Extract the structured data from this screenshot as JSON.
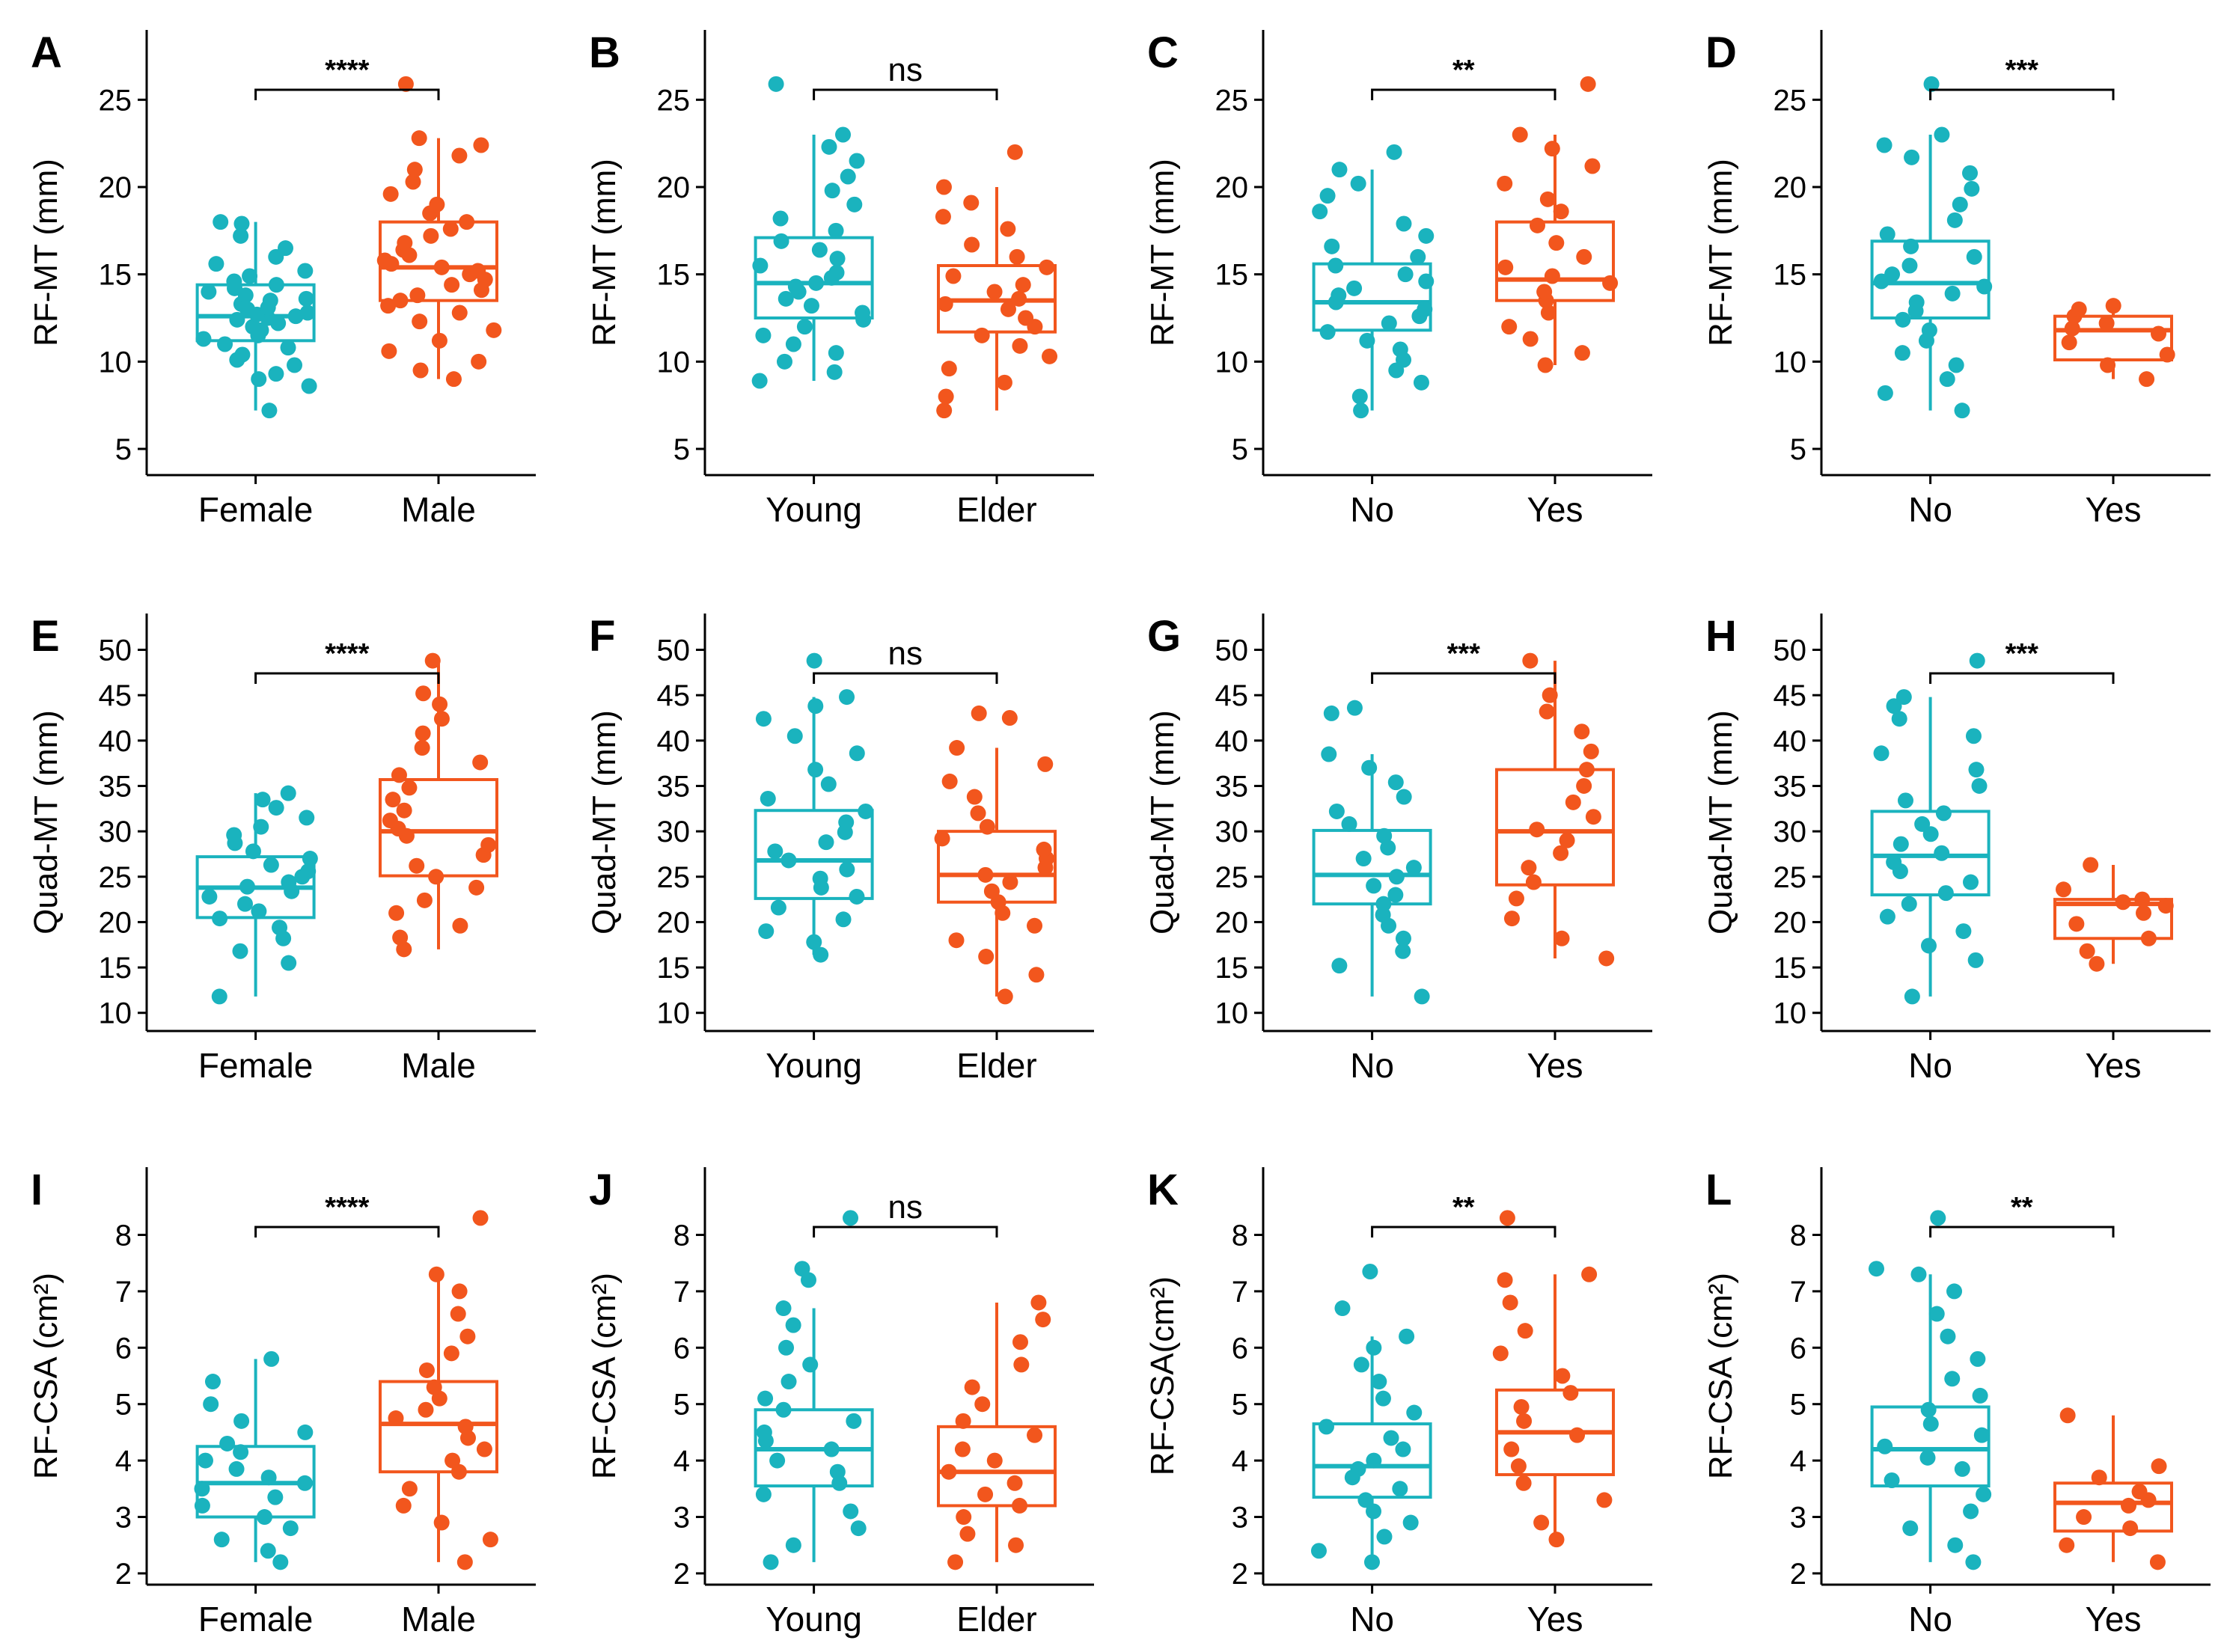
{
  "figure": {
    "title": "",
    "caption": ""
  },
  "colors": {
    "group1": "#1AB3BE",
    "group2": "#F2561D",
    "axis": "#000000"
  },
  "chart_data": [
    {
      "panel": "A",
      "type": "box",
      "ylabel": "RF-MT (mm)",
      "ylim": [
        3.5,
        29
      ],
      "yticks": [
        5,
        10,
        15,
        20,
        25
      ],
      "categories": [
        "Female",
        "Male"
      ],
      "significance": "****",
      "boxes": [
        {
          "q1": 11.2,
          "median": 12.6,
          "q3": 14.4,
          "whisker_low": 7.2,
          "whisker_high": 18.0
        },
        {
          "q1": 13.5,
          "median": 15.4,
          "q3": 18.0,
          "whisker_low": 9.0,
          "whisker_high": 22.8
        }
      ],
      "points": [
        [
          7.2,
          8.6,
          9,
          9.3,
          9.8,
          10.1,
          10.4,
          10.8,
          11.0,
          11.3,
          11.5,
          11.8,
          12.0,
          12.2,
          12.4,
          12.5,
          12.6,
          12.7,
          12.8,
          13.0,
          13.1,
          13.3,
          13.5,
          13.6,
          13.8,
          14.0,
          14.2,
          14.4,
          14.6,
          14.9,
          15.2,
          15.6,
          16.0,
          16.5,
          17.2,
          17.9,
          18.0
        ],
        [
          9.0,
          9.5,
          10.0,
          10.6,
          11.2,
          11.8,
          12.3,
          12.8,
          13.2,
          13.5,
          13.8,
          14.1,
          14.4,
          14.7,
          15.0,
          15.2,
          15.4,
          15.6,
          15.8,
          16.1,
          16.4,
          16.8,
          17.2,
          17.6,
          18.0,
          18.5,
          19.0,
          19.6,
          20.3,
          21.0,
          21.8,
          22.4,
          22.8,
          25.9
        ]
      ]
    },
    {
      "panel": "B",
      "type": "box",
      "ylabel": "RF-MT (mm)",
      "ylim": [
        3.5,
        29
      ],
      "yticks": [
        5,
        10,
        15,
        20,
        25
      ],
      "categories": [
        "Young",
        "Elder"
      ],
      "significance": "ns",
      "boxes": [
        {
          "q1": 12.5,
          "median": 14.5,
          "q3": 17.1,
          "whisker_low": 8.9,
          "whisker_high": 23.0
        },
        {
          "q1": 11.7,
          "median": 13.5,
          "q3": 15.5,
          "whisker_low": 7.2,
          "whisker_high": 20.0
        }
      ],
      "points": [
        [
          8.9,
          9.4,
          10.0,
          10.5,
          11.0,
          11.5,
          12.0,
          12.4,
          12.8,
          13.2,
          13.6,
          14.0,
          14.3,
          14.5,
          14.8,
          15.1,
          15.5,
          15.9,
          16.4,
          16.9,
          17.5,
          18.2,
          19.0,
          19.8,
          20.6,
          21.5,
          22.3,
          23.0,
          25.9
        ],
        [
          7.2,
          8.0,
          8.8,
          9.6,
          10.3,
          10.9,
          11.5,
          12.0,
          12.5,
          13.0,
          13.3,
          13.6,
          14.0,
          14.4,
          14.9,
          15.4,
          16.0,
          16.7,
          17.6,
          18.3,
          19.1,
          20.0,
          22.0
        ]
      ]
    },
    {
      "panel": "C",
      "type": "box",
      "ylabel": "RF-MT (mm)",
      "ylim": [
        3.5,
        29
      ],
      "yticks": [
        5,
        10,
        15,
        20,
        25
      ],
      "categories": [
        "No",
        "Yes"
      ],
      "significance": "**",
      "boxes": [
        {
          "q1": 11.8,
          "median": 13.4,
          "q3": 15.6,
          "whisker_low": 7.2,
          "whisker_high": 21.0
        },
        {
          "q1": 13.5,
          "median": 14.7,
          "q3": 18.0,
          "whisker_low": 9.8,
          "whisker_high": 23.0
        }
      ],
      "points": [
        [
          7.2,
          8.0,
          8.8,
          9.5,
          10.1,
          10.7,
          11.2,
          11.7,
          12.2,
          12.6,
          13.0,
          13.4,
          13.8,
          14.2,
          14.6,
          15.0,
          15.5,
          16.0,
          16.6,
          17.2,
          17.9,
          18.6,
          19.5,
          20.2,
          21.0,
          22.0
        ],
        [
          9.8,
          10.5,
          11.3,
          12.0,
          12.8,
          13.5,
          14.0,
          14.5,
          14.9,
          15.4,
          16.0,
          16.8,
          17.8,
          18.6,
          19.3,
          20.2,
          21.2,
          22.2,
          23.0,
          25.9
        ]
      ]
    },
    {
      "panel": "D",
      "type": "box",
      "ylabel": "RF-MT (mm)",
      "ylim": [
        3.5,
        29
      ],
      "yticks": [
        5,
        10,
        15,
        20,
        25
      ],
      "categories": [
        "No",
        "Yes"
      ],
      "significance": "***",
      "boxes": [
        {
          "q1": 12.5,
          "median": 14.5,
          "q3": 16.9,
          "whisker_low": 7.2,
          "whisker_high": 23.0
        },
        {
          "q1": 10.1,
          "median": 11.8,
          "q3": 12.6,
          "whisker_low": 9.0,
          "whisker_high": 13.2
        }
      ],
      "points": [
        [
          7.2,
          8.2,
          9.0,
          9.8,
          10.5,
          11.2,
          11.8,
          12.4,
          12.9,
          13.4,
          13.9,
          14.3,
          14.6,
          15.0,
          15.5,
          16.0,
          16.6,
          17.3,
          18.1,
          19.0,
          19.9,
          20.8,
          21.7,
          22.4,
          23.0,
          25.9
        ],
        [
          9.0,
          9.8,
          10.4,
          11.1,
          11.6,
          11.9,
          12.2,
          12.6,
          13.0,
          13.2
        ]
      ]
    },
    {
      "panel": "E",
      "type": "box",
      "ylabel": "Quad-MT (mm)",
      "ylim": [
        8,
        54
      ],
      "yticks": [
        10,
        15,
        20,
        25,
        30,
        35,
        40,
        45,
        50
      ],
      "categories": [
        "Female",
        "Male"
      ],
      "significance": "****",
      "boxes": [
        {
          "q1": 20.5,
          "median": 23.8,
          "q3": 27.2,
          "whisker_low": 11.8,
          "whisker_high": 34.2
        },
        {
          "q1": 25.1,
          "median": 30.0,
          "q3": 35.7,
          "whisker_low": 17.0,
          "whisker_high": 48.8
        }
      ],
      "points": [
        [
          11.8,
          15.5,
          16.8,
          18.2,
          19.4,
          20.4,
          21.2,
          22.0,
          22.8,
          23.4,
          23.9,
          24.4,
          25.0,
          25.6,
          26.3,
          27.0,
          27.8,
          28.7,
          29.6,
          30.5,
          31.5,
          32.6,
          33.5,
          34.2
        ],
        [
          17.0,
          18.3,
          19.6,
          21.0,
          22.4,
          23.8,
          25.0,
          26.2,
          27.4,
          28.5,
          29.5,
          30.3,
          31.2,
          32.3,
          33.5,
          34.8,
          36.2,
          37.6,
          39.2,
          40.8,
          42.4,
          44.0,
          45.2,
          48.8
        ]
      ]
    },
    {
      "panel": "F",
      "type": "box",
      "ylabel": "Quad-MT (mm)",
      "ylim": [
        8,
        54
      ],
      "yticks": [
        10,
        15,
        20,
        25,
        30,
        35,
        40,
        45,
        50
      ],
      "categories": [
        "Young",
        "Elder"
      ],
      "significance": "ns",
      "boxes": [
        {
          "q1": 22.6,
          "median": 26.8,
          "q3": 32.3,
          "whisker_low": 16.4,
          "whisker_high": 44.8
        },
        {
          "q1": 22.2,
          "median": 25.2,
          "q3": 30.0,
          "whisker_low": 11.8,
          "whisker_high": 39.2
        }
      ],
      "points": [
        [
          16.4,
          17.8,
          19.0,
          20.3,
          21.6,
          22.8,
          23.8,
          24.8,
          25.8,
          26.8,
          27.8,
          28.8,
          29.9,
          31.0,
          32.2,
          33.6,
          35.2,
          36.8,
          38.6,
          40.5,
          42.4,
          43.8,
          44.8,
          48.8
        ],
        [
          11.8,
          14.2,
          16.2,
          18.0,
          19.6,
          21.0,
          22.2,
          23.4,
          24.4,
          25.2,
          26.0,
          27.0,
          28.0,
          29.2,
          30.5,
          32.0,
          33.8,
          35.5,
          37.4,
          39.2,
          42.5,
          43.0
        ]
      ]
    },
    {
      "panel": "G",
      "type": "box",
      "ylabel": "Quad-MT (mm)",
      "ylim": [
        8,
        54
      ],
      "yticks": [
        10,
        15,
        20,
        25,
        30,
        35,
        40,
        45,
        50
      ],
      "categories": [
        "No",
        "Yes"
      ],
      "significance": "***",
      "boxes": [
        {
          "q1": 22.0,
          "median": 25.2,
          "q3": 30.1,
          "whisker_low": 11.8,
          "whisker_high": 38.5
        },
        {
          "q1": 24.1,
          "median": 30.0,
          "q3": 36.8,
          "whisker_low": 16.0,
          "whisker_high": 48.8
        }
      ],
      "points": [
        [
          11.8,
          15.2,
          16.8,
          18.2,
          19.6,
          20.8,
          22.0,
          23.0,
          24.0,
          25.0,
          26.0,
          27.0,
          28.2,
          29.5,
          30.8,
          32.2,
          33.8,
          35.4,
          37.0,
          38.5,
          43.0,
          43.6
        ],
        [
          16.0,
          18.2,
          20.4,
          22.6,
          24.4,
          26.0,
          27.6,
          29.0,
          30.2,
          31.6,
          33.2,
          35.0,
          36.8,
          38.8,
          41.0,
          43.2,
          45.0,
          48.8
        ]
      ]
    },
    {
      "panel": "H",
      "type": "box",
      "ylabel": "Quad-MT (mm)",
      "ylim": [
        8,
        54
      ],
      "yticks": [
        10,
        15,
        20,
        25,
        30,
        35,
        40,
        45,
        50
      ],
      "categories": [
        "No",
        "Yes"
      ],
      "significance": "***",
      "boxes": [
        {
          "q1": 23.0,
          "median": 27.3,
          "q3": 32.2,
          "whisker_low": 11.8,
          "whisker_high": 44.8
        },
        {
          "q1": 18.2,
          "median": 22.0,
          "q3": 22.5,
          "whisker_low": 15.4,
          "whisker_high": 26.3
        }
      ],
      "points": [
        [
          11.8,
          15.8,
          17.4,
          19.0,
          20.6,
          22.0,
          23.2,
          24.4,
          25.6,
          26.6,
          27.6,
          28.6,
          29.7,
          30.8,
          32.0,
          33.4,
          35.0,
          36.8,
          38.6,
          40.5,
          42.4,
          43.8,
          44.8,
          48.8
        ],
        [
          15.4,
          16.8,
          18.2,
          19.8,
          21.0,
          21.8,
          22.2,
          22.5,
          23.6,
          26.3
        ]
      ]
    },
    {
      "panel": "I",
      "type": "box",
      "ylabel": "RF-CSA (cm²)",
      "ylim": [
        1.8,
        9.2
      ],
      "yticks": [
        2,
        3,
        4,
        5,
        6,
        7,
        8
      ],
      "categories": [
        "Female",
        "Male"
      ],
      "significance": "****",
      "boxes": [
        {
          "q1": 3.0,
          "median": 3.6,
          "q3": 4.25,
          "whisker_low": 2.2,
          "whisker_high": 5.8
        },
        {
          "q1": 3.8,
          "median": 4.65,
          "q3": 5.4,
          "whisker_low": 2.2,
          "whisker_high": 7.3
        }
      ],
      "points": [
        [
          2.2,
          2.4,
          2.6,
          2.8,
          3.0,
          3.2,
          3.35,
          3.5,
          3.6,
          3.7,
          3.85,
          4.0,
          4.15,
          4.3,
          4.5,
          4.7,
          5.0,
          5.4,
          5.8
        ],
        [
          2.2,
          2.6,
          2.9,
          3.2,
          3.5,
          3.8,
          4.0,
          4.2,
          4.4,
          4.6,
          4.75,
          4.9,
          5.1,
          5.3,
          5.6,
          5.9,
          6.2,
          6.6,
          7.0,
          7.3,
          8.3
        ]
      ]
    },
    {
      "panel": "J",
      "type": "box",
      "ylabel": "RF-CSA (cm²)",
      "ylim": [
        1.8,
        9.2
      ],
      "yticks": [
        2,
        3,
        4,
        5,
        6,
        7,
        8
      ],
      "categories": [
        "Young",
        "Elder"
      ],
      "significance": "ns",
      "boxes": [
        {
          "q1": 3.55,
          "median": 4.2,
          "q3": 4.9,
          "whisker_low": 2.2,
          "whisker_high": 6.7
        },
        {
          "q1": 3.2,
          "median": 3.8,
          "q3": 4.6,
          "whisker_low": 2.2,
          "whisker_high": 6.8
        }
      ],
      "points": [
        [
          2.2,
          2.5,
          2.8,
          3.1,
          3.4,
          3.6,
          3.8,
          4.0,
          4.2,
          4.35,
          4.5,
          4.7,
          4.9,
          5.1,
          5.4,
          5.7,
          6.0,
          6.4,
          6.7,
          7.2,
          7.4,
          8.3
        ],
        [
          2.2,
          2.5,
          2.7,
          3.0,
          3.2,
          3.4,
          3.6,
          3.8,
          4.0,
          4.2,
          4.45,
          4.7,
          5.0,
          5.3,
          5.7,
          6.1,
          6.5,
          6.8
        ]
      ]
    },
    {
      "panel": "K",
      "type": "box",
      "ylabel": "RF-CSA(cm²)",
      "ylim": [
        1.8,
        9.2
      ],
      "yticks": [
        2,
        3,
        4,
        5,
        6,
        7,
        8
      ],
      "categories": [
        "No",
        "Yes"
      ],
      "significance": "**",
      "boxes": [
        {
          "q1": 3.35,
          "median": 3.9,
          "q3": 4.65,
          "whisker_low": 2.2,
          "whisker_high": 6.2
        },
        {
          "q1": 3.75,
          "median": 4.5,
          "q3": 5.25,
          "whisker_low": 2.6,
          "whisker_high": 7.3
        }
      ],
      "points": [
        [
          2.2,
          2.4,
          2.65,
          2.9,
          3.1,
          3.3,
          3.5,
          3.7,
          3.85,
          4.0,
          4.2,
          4.4,
          4.6,
          4.85,
          5.1,
          5.4,
          5.7,
          6.0,
          6.2,
          6.7,
          7.35
        ],
        [
          2.6,
          2.9,
          3.3,
          3.6,
          3.9,
          4.2,
          4.45,
          4.7,
          4.95,
          5.2,
          5.5,
          5.9,
          6.3,
          6.8,
          7.2,
          7.3,
          8.3
        ]
      ]
    },
    {
      "panel": "L",
      "type": "box",
      "ylabel": "RF-CSA (cm²)",
      "ylim": [
        1.8,
        9.2
      ],
      "yticks": [
        2,
        3,
        4,
        5,
        6,
        7,
        8
      ],
      "categories": [
        "No",
        "Yes"
      ],
      "significance": "**",
      "boxes": [
        {
          "q1": 3.55,
          "median": 4.2,
          "q3": 4.95,
          "whisker_low": 2.2,
          "whisker_high": 7.3
        },
        {
          "q1": 2.75,
          "median": 3.25,
          "q3": 3.6,
          "whisker_low": 2.2,
          "whisker_high": 4.8
        }
      ],
      "points": [
        [
          2.2,
          2.5,
          2.8,
          3.1,
          3.4,
          3.65,
          3.85,
          4.05,
          4.25,
          4.45,
          4.65,
          4.9,
          5.15,
          5.45,
          5.8,
          6.2,
          6.6,
          7.0,
          7.3,
          7.4,
          8.3
        ],
        [
          2.2,
          2.5,
          2.8,
          3.0,
          3.2,
          3.3,
          3.45,
          3.7,
          3.9,
          4.8
        ]
      ]
    }
  ]
}
